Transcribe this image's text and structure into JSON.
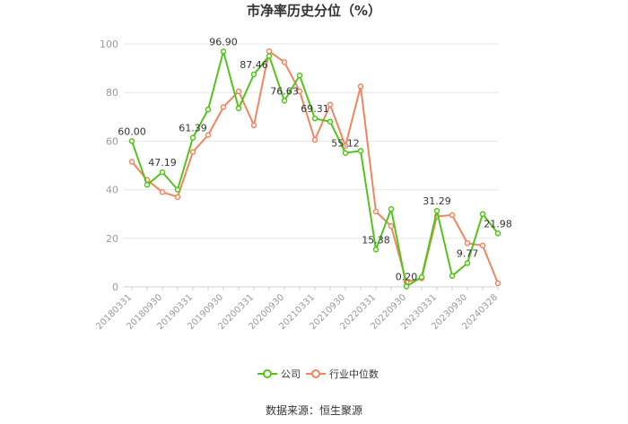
{
  "chart_data": {
    "type": "line",
    "title": "市净率历史分位（%）",
    "ylim": [
      0,
      100
    ],
    "yticks": [
      0,
      20,
      40,
      60,
      80,
      100
    ],
    "x": [
      "20180331",
      "20180630",
      "20180930",
      "20181231",
      "20190331",
      "20190630",
      "20190930",
      "20191231",
      "20200331",
      "20200630",
      "20200930",
      "20201231",
      "20210331",
      "20210630",
      "20210930",
      "20211231",
      "20220331",
      "20220630",
      "20220930",
      "20221231",
      "20230331",
      "20230630",
      "20230930",
      "20231231",
      "20240328"
    ],
    "xtick_labels": [
      "20180331",
      "20180930",
      "20190331",
      "20190930",
      "20200331",
      "20200930",
      "20210331",
      "20210930",
      "20220331",
      "20220930",
      "20230331",
      "20230930",
      "20240328"
    ],
    "series": [
      {
        "name": "公司",
        "color": "#52c41a",
        "values": [
          60.0,
          42,
          47.19,
          40,
          61.39,
          73,
          96.9,
          73.5,
          87.46,
          95,
          76.63,
          87,
          69.31,
          68,
          55.12,
          56,
          15.38,
          32,
          0.2,
          4,
          31.29,
          4.5,
          9.77,
          30,
          21.98
        ],
        "labels": [
          "60.00",
          "",
          "47.19",
          "",
          "61.39",
          "",
          "96.90",
          "",
          "87.46",
          "",
          "76.63",
          "",
          "69.31",
          "",
          "55.12",
          "",
          "15.38",
          "",
          "0.20",
          "",
          "31.29",
          "",
          "9.77",
          "",
          "21.98"
        ]
      },
      {
        "name": "行业中位数",
        "color": "#f4845f",
        "values": [
          51.5,
          44,
          39,
          37,
          55.5,
          62.5,
          74,
          80.5,
          66.5,
          97,
          92.5,
          80.5,
          60.5,
          75,
          58,
          82.5,
          31,
          25,
          2,
          3.5,
          29,
          29.5,
          18,
          17,
          1.5
        ]
      }
    ],
    "legend_position": "bottom",
    "grid": true,
    "source": "数据来源：恒生聚源"
  }
}
